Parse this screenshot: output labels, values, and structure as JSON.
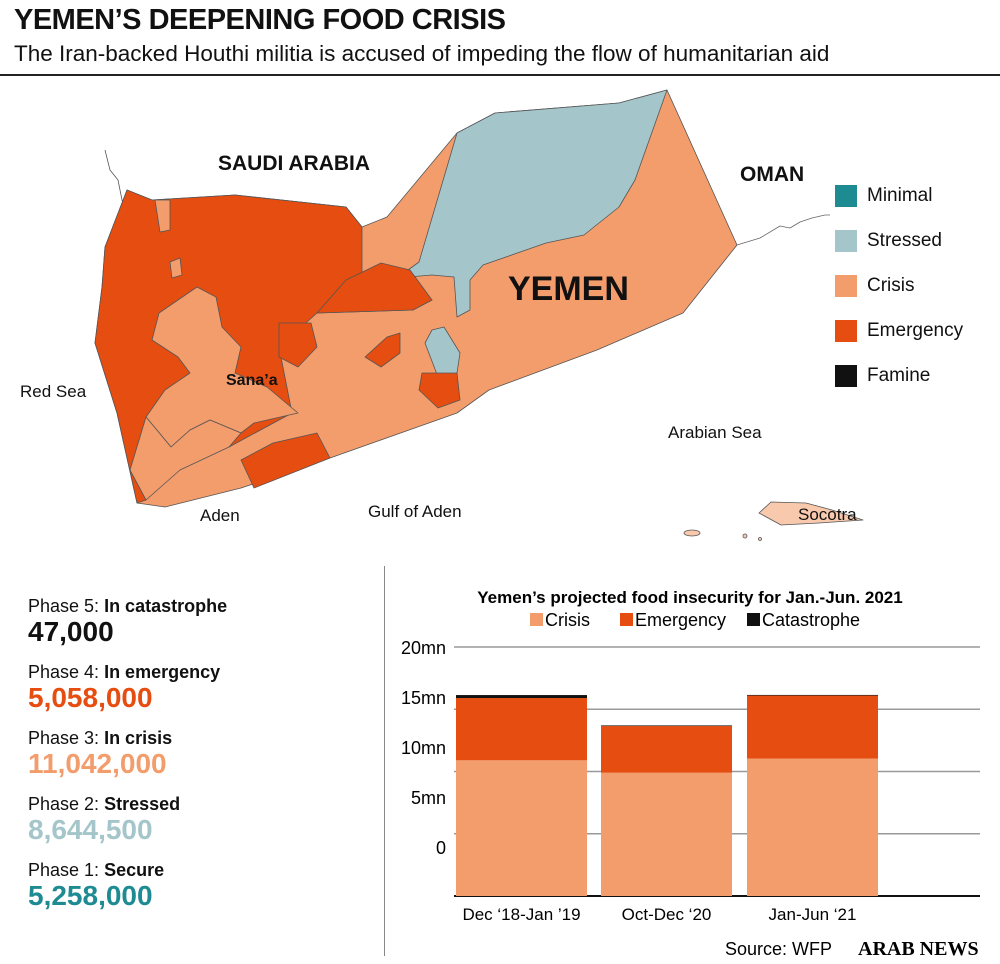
{
  "header": {
    "title": "YEMEN’S DEEPENING FOOD CRISIS",
    "subtitle": "The Iran-backed Houthi militia is accused of impeding the flow of humanitarian aid"
  },
  "map": {
    "labels": {
      "saudi": "SAUDI ARABIA",
      "oman": "OMAN",
      "yemen": "YEMEN",
      "red_sea": "Red Sea",
      "sanaa": "Sana’a",
      "aden": "Aden",
      "gulf": "Gulf of Aden",
      "arabian": "Arabian Sea",
      "socotra": "Socotra"
    },
    "legend": [
      {
        "label": "Minimal",
        "color": "#1d8b91"
      },
      {
        "label": "Stressed",
        "color": "#a4c6ca"
      },
      {
        "label": "Crisis",
        "color": "#f39d6c"
      },
      {
        "label": "Emergency",
        "color": "#e64d10"
      },
      {
        "label": "Famine",
        "color": "#111111"
      }
    ]
  },
  "phases": [
    {
      "label_prefix": "Phase 5: ",
      "label_bold": "In catastrophe",
      "value": "47,000",
      "color": "#111111"
    },
    {
      "label_prefix": "Phase 4: ",
      "label_bold": "In emergency",
      "value": "5,058,000",
      "color": "#e64d10"
    },
    {
      "label_prefix": "Phase 3: ",
      "label_bold": "In crisis",
      "value": "11,042,000",
      "color": "#f39d6c"
    },
    {
      "label_prefix": "Phase 2: ",
      "label_bold": "Stressed",
      "value": "8,644,500",
      "color": "#a4c6ca"
    },
    {
      "label_prefix": "Phase 1: ",
      "label_bold": "Secure",
      "value": "5,258,000",
      "color": "#1d8b91"
    }
  ],
  "chart_data": {
    "type": "bar",
    "stacked": true,
    "title": "Yemen’s projected food insecurity for Jan.-Jun. 2021",
    "categories": [
      "Dec ‘18-Jan ’19",
      "Oct-Dec ‘20",
      "Jan-Jun ‘21"
    ],
    "series": [
      {
        "name": "Crisis",
        "color": "#f39d6c",
        "values": [
          10.9,
          9.9,
          11.04
        ]
      },
      {
        "name": "Emergency",
        "color": "#e64d10",
        "values": [
          5.0,
          3.75,
          5.06
        ]
      },
      {
        "name": "Catastrophe",
        "color": "#111111",
        "values": [
          0.24,
          0.05,
          0.05
        ]
      }
    ],
    "ylim": [
      0,
      20
    ],
    "yticks": [
      "20mn",
      "15mn",
      "10mn",
      "5mn",
      "0"
    ],
    "grid": true,
    "legend_position": "top"
  },
  "footer": {
    "source": "Source: WFP",
    "brand": "ARAB NEWS"
  }
}
